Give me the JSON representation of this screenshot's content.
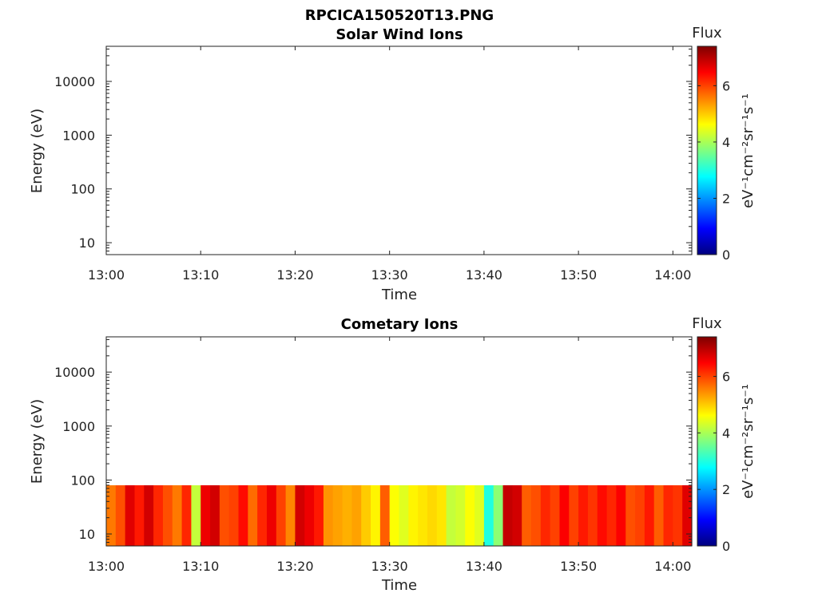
{
  "figure": {
    "title": "RPCICA150520T13.PNG"
  },
  "colorbar": {
    "label": "Flux",
    "unit": "eV⁻¹cm⁻²sr⁻¹s⁻¹",
    "ticks": [
      "0",
      "2",
      "4",
      "6"
    ],
    "range": [
      0,
      7.4
    ],
    "colormap": "jet"
  },
  "chart_data": [
    {
      "type": "heatmap",
      "title": "Solar Wind Ions",
      "xlabel": "Time",
      "ylabel": "Energy (eV)",
      "x_ticks": [
        "13:00",
        "13:10",
        "13:20",
        "13:30",
        "13:40",
        "13:50",
        "14:00"
      ],
      "xlim": [
        "13:00",
        "14:02"
      ],
      "y_scale": "log",
      "y_ticks": [
        "10",
        "100",
        "1000",
        "10000"
      ],
      "ylim": [
        6,
        45000
      ],
      "x": [],
      "values": []
    },
    {
      "type": "heatmap",
      "title": "Cometary Ions",
      "xlabel": "Time",
      "ylabel": "Energy (eV)",
      "x_ticks": [
        "13:00",
        "13:10",
        "13:20",
        "13:30",
        "13:40",
        "13:50",
        "14:00"
      ],
      "xlim": [
        "13:00",
        "14:02"
      ],
      "y_scale": "log",
      "y_ticks": [
        "10",
        "100",
        "1000",
        "10000"
      ],
      "ylim": [
        6,
        45000
      ],
      "energy_range": [
        6,
        80
      ],
      "x": [
        "13:00",
        "13:01",
        "13:02",
        "13:03",
        "13:04",
        "13:05",
        "13:06",
        "13:07",
        "13:08",
        "13:09",
        "13:10",
        "13:11",
        "13:12",
        "13:13",
        "13:14",
        "13:15",
        "13:16",
        "13:17",
        "13:18",
        "13:19",
        "13:20",
        "13:21",
        "13:22",
        "13:23",
        "13:24",
        "13:25",
        "13:26",
        "13:27",
        "13:28",
        "13:29",
        "13:30",
        "13:31",
        "13:32",
        "13:33",
        "13:34",
        "13:35",
        "13:36",
        "13:37",
        "13:38",
        "13:39",
        "13:40",
        "13:41",
        "13:42",
        "13:43",
        "13:44",
        "13:45",
        "13:46",
        "13:47",
        "13:48",
        "13:49",
        "13:50",
        "13:51",
        "13:52",
        "13:53",
        "13:54",
        "13:55",
        "13:56",
        "13:57",
        "13:58",
        "13:59",
        "14:00",
        "14:01"
      ],
      "values": [
        5.6,
        5.9,
        6.7,
        6.3,
        6.8,
        6.2,
        5.9,
        5.6,
        6.2,
        4.2,
        6.6,
        6.8,
        5.9,
        6.0,
        6.4,
        5.7,
        6.2,
        6.6,
        6.0,
        5.5,
        6.8,
        6.6,
        6.3,
        5.4,
        5.3,
        5.2,
        5.3,
        5.0,
        4.7,
        5.8,
        4.6,
        4.4,
        4.7,
        4.8,
        4.9,
        4.8,
        4.2,
        4.3,
        4.6,
        4.4,
        3.0,
        3.8,
        6.9,
        6.8,
        5.8,
        5.9,
        6.2,
        6.0,
        6.5,
        6.0,
        6.3,
        6.1,
        6.4,
        6.2,
        6.5,
        5.9,
        6.0,
        6.3,
        5.8,
        6.2,
        6.1,
        6.7
      ]
    }
  ]
}
